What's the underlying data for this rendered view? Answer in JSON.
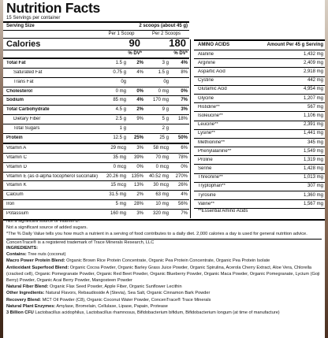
{
  "title": "Nutrition Facts",
  "servings": "15 Servings per container",
  "serving_size_label": "Serving Size",
  "serving_size_value": "2 scoops (about 45 g)",
  "col_per1": "Per 1 Scoop",
  "col_per2": "Per 2 Scoops",
  "calories_label": "Calories",
  "calories_1": "90",
  "calories_2": "180",
  "dv_label": "% DV*",
  "nutrients": [
    {
      "name": "Total Fat",
      "a": "1.5 g",
      "b": "2%",
      "c": "3 g",
      "d": "4%",
      "bold": true,
      "indent": false,
      "line": "thick"
    },
    {
      "name": "Saturated Fat",
      "a": "0.75 g",
      "b": "4%",
      "c": "1.5 g",
      "d": "8%",
      "bold": false,
      "indent": true,
      "line": ""
    },
    {
      "name": "Trans Fat",
      "a": "0g",
      "b": "",
      "c": "0g",
      "d": "",
      "bold": false,
      "indent": true,
      "line": ""
    },
    {
      "name": "Cholesterol",
      "a": "0 mg",
      "b": "0%",
      "c": "0 mg",
      "d": "0%",
      "bold": true,
      "indent": false,
      "line": ""
    },
    {
      "name": "Sodium",
      "a": "85 mg",
      "b": "4%",
      "c": "170 mg",
      "d": "7%",
      "bold": true,
      "indent": false,
      "line": ""
    },
    {
      "name": "Total Carbohydrate",
      "a": "4.5 g",
      "b": "2%",
      "c": "9 g",
      "d": "3%",
      "bold": true,
      "indent": false,
      "line": ""
    },
    {
      "name": "Dietary Fiber",
      "a": "2.5 g",
      "b": "9%",
      "c": "5 g",
      "d": "18%",
      "bold": false,
      "indent": true,
      "line": ""
    },
    {
      "name": "Total Sugars",
      "a": "1 g",
      "b": "",
      "c": "2 g",
      "d": "",
      "bold": false,
      "indent": true,
      "line": ""
    },
    {
      "name": "Protein",
      "a": "12.5 g",
      "b": "25%",
      "c": "25 g",
      "d": "50%",
      "bold": true,
      "indent": false,
      "line": ""
    },
    {
      "name": "Vitamin A",
      "a": "29 mcg",
      "b": "3%",
      "c": "58 mcg",
      "d": "6%",
      "bold": false,
      "indent": false,
      "line": "thick"
    },
    {
      "name": "Vitamin C",
      "a": "35 mg",
      "b": "39%",
      "c": "70 mg",
      "d": "78%",
      "bold": false,
      "indent": false,
      "line": ""
    },
    {
      "name": "Vitamin D",
      "a": "0 mcg",
      "b": "0%",
      "c": "0 mcg",
      "d": "0%",
      "bold": false,
      "indent": false,
      "line": ""
    },
    {
      "name": "Vitamin E (as d-alpha tocopherol succinate)",
      "a": "20.26 mg",
      "b": "135%",
      "c": "40.52 mg",
      "d": "270%",
      "bold": false,
      "indent": false,
      "line": ""
    },
    {
      "name": "Vitamin K",
      "a": "15 mcg",
      "b": "13%",
      "c": "30 mcg",
      "d": "26%",
      "bold": false,
      "indent": false,
      "line": ""
    },
    {
      "name": "Calcium",
      "a": "31.5 mg",
      "b": "2%",
      "c": "63 mg",
      "d": "4%",
      "bold": false,
      "indent": false,
      "line": ""
    },
    {
      "name": "Iron",
      "a": "5 mg",
      "b": "28%",
      "c": "10 mg",
      "d": "56%",
      "bold": false,
      "indent": false,
      "line": ""
    },
    {
      "name": "Potassium",
      "a": "160 mg",
      "b": "3%",
      "c": "320 mg",
      "d": "7%",
      "bold": false,
      "indent": false,
      "line": ""
    }
  ],
  "aa_header": "AMINO ACIDS",
  "aa_header_value": "Amount Per 45 g Serving",
  "amino_acids": [
    {
      "name": "Alanine",
      "v": "1,432 mg"
    },
    {
      "name": "Arginine",
      "v": "2,409 mg"
    },
    {
      "name": "Aspartic Acid",
      "v": "2,918 mg"
    },
    {
      "name": "Cystine",
      "v": "442 mg"
    },
    {
      "name": "Glutamic Acid",
      "v": "4,954 mg"
    },
    {
      "name": "Glycine",
      "v": "1,207 mg"
    },
    {
      "name": "Histidine**",
      "v": "567 mg"
    },
    {
      "name": "Isoleucine**",
      "v": "1,106 mg"
    },
    {
      "name": "Leucine**",
      "v": "2,391 mg"
    },
    {
      "name": "Lysine**",
      "v": "1,441 mg"
    },
    {
      "name": "Methionine**",
      "v": "345 mg"
    },
    {
      "name": "Phenylalanine**",
      "v": "1,549 mg"
    },
    {
      "name": "Proline",
      "v": "1,319 mg"
    },
    {
      "name": "Serine",
      "v": "1,428 mg"
    },
    {
      "name": "Threonine**",
      "v": "1,013 mg"
    },
    {
      "name": "Tryptophan**",
      "v": "307 mg"
    },
    {
      "name": "Tyrosine",
      "v": "1,360 mg"
    },
    {
      "name": "Valine**",
      "v": "1,567 mg"
    }
  ],
  "aa_note": "**Essential Amino Acids",
  "footnotes": [
    "Not a significant source of Vitamin D.",
    "Not a significant source of added sugars.",
    "*The % Daily Value tells you how much a nutrient in a serving of food contributes to a daily diet. 2,000 calories a day is used for general nutrition advice."
  ],
  "trademark": "ConcenTrace® is a registered trademark of Trace Minerals Research, LLC",
  "ingredients_title": "INGREDIENTS:",
  "ingredients": [
    {
      "h": "Contains:",
      "t": " Tree nuts (coconut)"
    },
    {
      "h": "Macro Power Protein Blend:",
      "t": " Organic Brown Rice Protein Concentrate, Organic Pea Protein Concentrate, Organic Pea Protein Isolate"
    },
    {
      "h": "Antioxidant Superfood Blend:",
      "t": " Organic Cocoa Powder, Organic Barley Grass Juice Powder, Organic Spirulina, Acerola Cherry Extract, Aloe Vera, Chlorella (cracked cell), Organic Pomegranate Powder, Organic Red Beet Powder, Organic Blueberry Powder, Organic Maca Powder, Organic Pomegranate, Lycium (Goji Berry) Powder, Organic Acai Berry Powder, Mangosteen Powder"
    },
    {
      "h": "Natural Fiber Blend:",
      "t": " Organic Flax Seed Powder, Apple Fiber, Organic Sunflower Lecithin"
    },
    {
      "h": "Other Ingredients:",
      "t": " Natural Flavors, Rebaudioside A (Stevia), Sea Salt, Organic Cinnamon Bark Powder"
    },
    {
      "h": "Recovery Blend:",
      "t": " MCT Oil Powder (C8), Organic Coconut Water Powder, ConcenTrace® Trace Minerals"
    },
    {
      "h": "Natural Plant Enzymes:",
      "t": " Amylase, Bromelain, Cellulase, Lipase, Papain, Protease"
    },
    {
      "h": "3 Billion CFU",
      "t": " Lactobacillus acidophilus, Lactobacillus rhamnosus, Bifidobacterium bifidum, Bifidobacterium longum (at time of manufacture)"
    }
  ]
}
